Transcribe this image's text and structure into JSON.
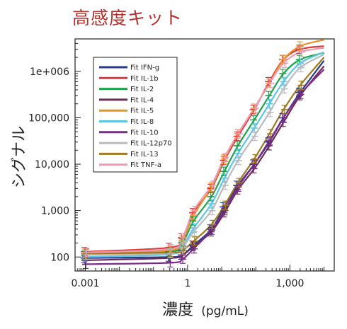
{
  "chart_data": {
    "type": "line",
    "title": "高感度キット",
    "xlabel_main": "濃度",
    "xlabel_unit": "(pg/mL)",
    "ylabel": "シグナル",
    "x_scale": "log",
    "y_scale": "log",
    "xlim": [
      0.0005,
      20000
    ],
    "ylim": [
      50,
      5000000
    ],
    "x_ticks": [
      {
        "value": 0.001,
        "label": "0.001"
      },
      {
        "value": 1,
        "label": "1"
      },
      {
        "value": 1000,
        "label": "1,000"
      }
    ],
    "y_ticks": [
      {
        "value": 100,
        "label": "100"
      },
      {
        "value": 1000,
        "label": "1,000"
      },
      {
        "value": 10000,
        "label": "10,000"
      },
      {
        "value": 100000,
        "label": "100,000"
      },
      {
        "value": 1000000,
        "label": "1e+006"
      }
    ],
    "x": [
      0.001,
      0.3,
      0.7,
      1.5,
      5,
      12,
      30,
      90,
      250,
      650,
      2000,
      10000
    ],
    "series": [
      {
        "name": "Fit IFN-g",
        "color": "#2b3a8c",
        "values": [
          95,
          100,
          110,
          180,
          400,
          1200,
          3500,
          10000,
          30000,
          100000,
          350000,
          1700000
        ]
      },
      {
        "name": "Fit IL-1b",
        "color": "#d93a3a",
        "values": [
          130,
          160,
          260,
          900,
          3000,
          12000,
          40000,
          150000,
          600000,
          1800000,
          3000000,
          3500000
        ]
      },
      {
        "name": "Fit IL-2",
        "color": "#1fa24a",
        "values": [
          110,
          130,
          200,
          600,
          2000,
          7000,
          25000,
          90000,
          300000,
          900000,
          1800000,
          2500000
        ]
      },
      {
        "name": "Fit IL-4",
        "color": "#6b2a5a",
        "values": [
          85,
          95,
          110,
          170,
          350,
          900,
          2800,
          8000,
          25000,
          80000,
          300000,
          1300000
        ]
      },
      {
        "name": "Fit IL-5",
        "color": "#e8922a",
        "values": [
          120,
          140,
          230,
          800,
          3200,
          13000,
          45000,
          160000,
          550000,
          1800000,
          3500000,
          4800000
        ]
      },
      {
        "name": "Fit IL-8",
        "color": "#5cc6e8",
        "values": [
          100,
          115,
          170,
          420,
          1400,
          5000,
          17000,
          60000,
          200000,
          600000,
          1500000,
          2600000
        ]
      },
      {
        "name": "Fit IL-10",
        "color": "#7a2c8a",
        "values": [
          70,
          75,
          90,
          150,
          380,
          1000,
          3200,
          10000,
          32000,
          100000,
          320000,
          1100000
        ]
      },
      {
        "name": "Fit IL-12p70",
        "color": "#b8bcc0",
        "values": [
          110,
          120,
          160,
          350,
          1000,
          3500,
          12000,
          40000,
          130000,
          420000,
          1200000,
          2300000
        ]
      },
      {
        "name": "Fit IL-13",
        "color": "#a07a20",
        "values": [
          120,
          125,
          140,
          220,
          500,
          1300,
          4000,
          13000,
          45000,
          150000,
          500000,
          2000000
        ]
      },
      {
        "name": "Fit TNF-a",
        "color": "#ee9bb4",
        "values": [
          125,
          150,
          260,
          1000,
          3500,
          14000,
          45000,
          160000,
          550000,
          1500000,
          2600000,
          3200000
        ]
      }
    ],
    "legend_position": "top-left",
    "grid": false
  }
}
